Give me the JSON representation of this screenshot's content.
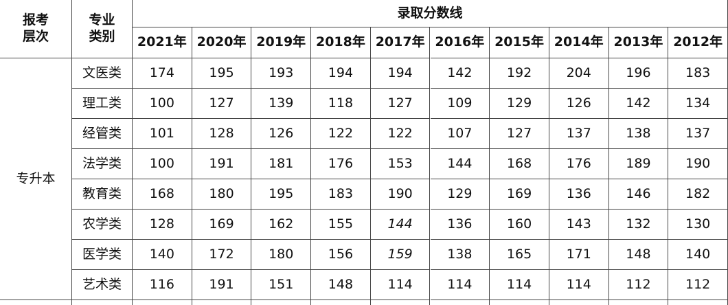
{
  "table": {
    "level_header": [
      "报考",
      "层次"
    ],
    "major_header": [
      "专业",
      "类别"
    ],
    "group_header": "录取分数线",
    "years": [
      "2021年",
      "2020年",
      "2019年",
      "2018年",
      "2017年",
      "2016年",
      "2015年",
      "2014年",
      "2013年",
      "2012年"
    ],
    "level": "专升本",
    "rows": [
      {
        "major": "文医类",
        "scores": [
          "174",
          "195",
          "193",
          "194",
          "194",
          "142",
          "192",
          "204",
          "196",
          "183"
        ]
      },
      {
        "major": "理工类",
        "scores": [
          "100",
          "127",
          "139",
          "118",
          "127",
          "109",
          "129",
          "126",
          "142",
          "134"
        ]
      },
      {
        "major": "经管类",
        "scores": [
          "101",
          "128",
          "126",
          "122",
          "122",
          "107",
          "127",
          "137",
          "138",
          "137"
        ]
      },
      {
        "major": "法学类",
        "scores": [
          "100",
          "191",
          "181",
          "176",
          "153",
          "144",
          "168",
          "176",
          "189",
          "190"
        ]
      },
      {
        "major": "教育类",
        "scores": [
          "168",
          "180",
          "195",
          "183",
          "190",
          "129",
          "169",
          "136",
          "146",
          "182"
        ]
      },
      {
        "major": "农学类",
        "scores": [
          "128",
          "169",
          "162",
          "155",
          "144",
          "136",
          "160",
          "143",
          "132",
          "130"
        ],
        "italic": [
          4
        ]
      },
      {
        "major": "医学类",
        "scores": [
          "140",
          "172",
          "180",
          "156",
          "159",
          "138",
          "165",
          "171",
          "148",
          "140"
        ],
        "italic": [
          4
        ]
      },
      {
        "major": "艺术类",
        "scores": [
          "116",
          "191",
          "151",
          "148",
          "114",
          "114",
          "114",
          "114",
          "112",
          "112"
        ]
      }
    ]
  }
}
